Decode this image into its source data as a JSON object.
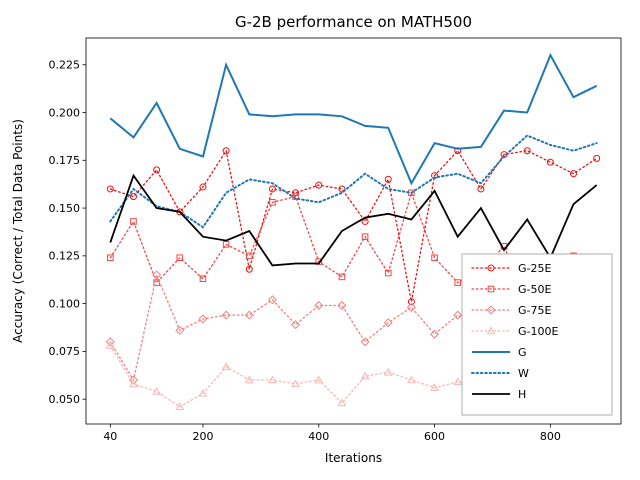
{
  "figure": {
    "title": "G-2B performance on MATH500",
    "xlabel": "Iterations",
    "ylabel": "Accuracy (Correct / Total Data Points)"
  },
  "chart_data": {
    "type": "line",
    "title": "G-2B performance on MATH500",
    "xlabel": "Iterations",
    "ylabel": "Accuracy (Correct / Total Data Points)",
    "grid": false,
    "legend_position": "lower right",
    "xlim": [
      -2,
      922
    ],
    "ylim": [
      0.037,
      0.239
    ],
    "xticks": [
      40,
      200,
      400,
      600,
      800
    ],
    "xtick_labels": [
      "40",
      "200",
      "400",
      "600",
      "800"
    ],
    "yticks": [
      0.05,
      0.075,
      0.1,
      0.125,
      0.15,
      0.175,
      0.2,
      0.225
    ],
    "ytick_labels": [
      "0.050",
      "0.075",
      "0.100",
      "0.125",
      "0.150",
      "0.175",
      "0.200",
      "0.225"
    ],
    "x": [
      40,
      80,
      120,
      160,
      200,
      240,
      280,
      320,
      360,
      400,
      440,
      480,
      520,
      560,
      600,
      640,
      680,
      720,
      760,
      800,
      840,
      880
    ],
    "series": [
      {
        "name": "G-25E",
        "color": "#ee1111",
        "linestyle": "dotted",
        "marker": "circle",
        "linewidth": 1.3,
        "values": [
          0.16,
          0.156,
          0.17,
          0.148,
          0.161,
          0.18,
          0.118,
          0.16,
          0.158,
          0.162,
          0.16,
          0.143,
          0.165,
          0.101,
          0.167,
          0.18,
          0.16,
          0.178,
          0.18,
          0.174,
          0.168,
          0.176
        ]
      },
      {
        "name": "G-50E",
        "color": "#f04848",
        "linestyle": "dotted",
        "marker": "square",
        "linewidth": 1.3,
        "values": [
          0.124,
          0.143,
          0.111,
          0.124,
          0.113,
          0.131,
          0.125,
          0.153,
          0.156,
          0.122,
          0.114,
          0.135,
          0.116,
          0.158,
          0.124,
          0.111,
          0.117,
          0.13,
          0.1,
          0.108,
          0.125,
          0.12
        ]
      },
      {
        "name": "G-75E",
        "color": "#f28080",
        "linestyle": "dotted",
        "marker": "diamond",
        "linewidth": 1.3,
        "values": [
          0.08,
          0.06,
          0.115,
          0.086,
          0.092,
          0.094,
          0.094,
          0.102,
          0.089,
          0.099,
          0.099,
          0.08,
          0.09,
          0.098,
          0.084,
          0.094,
          0.088,
          0.071,
          0.082,
          0.063,
          0.06,
          0.057
        ]
      },
      {
        "name": "G-100E",
        "color": "#f6b6b6",
        "linestyle": "dotted",
        "marker": "triangle",
        "linewidth": 1.3,
        "values": [
          0.078,
          0.058,
          0.054,
          0.046,
          0.053,
          0.067,
          0.06,
          0.06,
          0.058,
          0.06,
          0.048,
          0.062,
          0.064,
          0.06,
          0.056,
          0.059,
          0.059,
          0.062,
          0.055,
          0.064,
          0.058,
          0.055
        ]
      },
      {
        "name": "G",
        "color": "#1f77b4",
        "linestyle": "solid",
        "marker": "none",
        "linewidth": 2.0,
        "values": [
          0.197,
          0.187,
          0.205,
          0.181,
          0.177,
          0.225,
          0.199,
          0.198,
          0.199,
          0.199,
          0.198,
          0.193,
          0.192,
          0.163,
          0.184,
          0.181,
          0.182,
          0.201,
          0.2,
          0.23,
          0.208,
          0.214
        ]
      },
      {
        "name": "W",
        "color": "#1f77b4",
        "linestyle": "dotted",
        "marker": "none",
        "linewidth": 2.0,
        "values": [
          0.143,
          0.16,
          0.151,
          0.148,
          0.14,
          0.158,
          0.165,
          0.163,
          0.155,
          0.153,
          0.158,
          0.168,
          0.16,
          0.158,
          0.166,
          0.168,
          0.163,
          0.177,
          0.188,
          0.183,
          0.18,
          0.184
        ]
      },
      {
        "name": "H",
        "color": "#000000",
        "linestyle": "solid",
        "marker": "none",
        "linewidth": 1.8,
        "values": [
          0.132,
          0.167,
          0.15,
          0.148,
          0.135,
          0.133,
          0.138,
          0.12,
          0.121,
          0.121,
          0.138,
          0.145,
          0.147,
          0.144,
          0.159,
          0.135,
          0.15,
          0.128,
          0.144,
          0.124,
          0.152,
          0.162
        ]
      }
    ]
  }
}
